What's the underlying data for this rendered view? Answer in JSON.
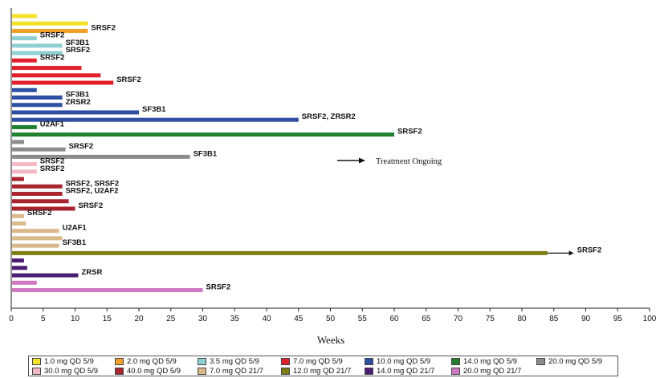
{
  "chart_data": {
    "type": "bar",
    "orientation": "horizontal",
    "xlabel": "Weeks",
    "xlim": [
      0,
      100
    ],
    "xticks": [
      0,
      5,
      10,
      15,
      20,
      25,
      30,
      35,
      40,
      45,
      50,
      55,
      60,
      65,
      70,
      75,
      80,
      85,
      90,
      95,
      100
    ],
    "annotation": "Treatment Ongoing",
    "groups": [
      {
        "name": "1.0 mg QD 5/9",
        "color": "#f2e229"
      },
      {
        "name": "2.0 mg QD 5/9",
        "color": "#f0a02a"
      },
      {
        "name": "3.5 mg QD 5/9",
        "color": "#8ecfd3"
      },
      {
        "name": "7.0 mg QD 5/9",
        "color": "#e0202a"
      },
      {
        "name": "10.0 mg QD 5/9",
        "color": "#2d4ea1"
      },
      {
        "name": "14.0 mg QD 5/9",
        "color": "#1f7f2e"
      },
      {
        "name": "20.0 mg QD 5/9",
        "color": "#8c8c8c"
      },
      {
        "name": "30.0 mg QD 5/9",
        "color": "#f3b8c4"
      },
      {
        "name": "40.0 mg QD 5/9",
        "color": "#a8242e"
      },
      {
        "name": "7.0 mg QD 21/7",
        "color": "#d9b88a"
      },
      {
        "name": "12.0 mg QD 21/7",
        "color": "#7f7e14"
      },
      {
        "name": "14.0 mg QD 21/7",
        "color": "#4a1f73"
      },
      {
        "name": "20.0 mg QD 21/7",
        "color": "#cf7ac0"
      }
    ],
    "bars": [
      {
        "group": 0,
        "value": 4,
        "label": ""
      },
      {
        "group": 0,
        "value": 12,
        "label": ""
      },
      {
        "group": 1,
        "value": 12,
        "label": "SRSF2"
      },
      {
        "group": 2,
        "value": 4,
        "label": "SRSF2"
      },
      {
        "group": 2,
        "value": 8,
        "label": "SF3B1"
      },
      {
        "group": 2,
        "value": 8,
        "label": "SRSF2"
      },
      {
        "group": 3,
        "value": 4,
        "label": "SRSF2"
      },
      {
        "group": 3,
        "value": 11,
        "label": ""
      },
      {
        "group": 3,
        "value": 14,
        "label": ""
      },
      {
        "group": 3,
        "value": 16,
        "label": "SRSF2"
      },
      {
        "group": 4,
        "value": 4,
        "label": ""
      },
      {
        "group": 4,
        "value": 8,
        "label": "SF3B1"
      },
      {
        "group": 4,
        "value": 8,
        "label": "ZRSR2"
      },
      {
        "group": 4,
        "value": 20,
        "label": "SF3B1"
      },
      {
        "group": 4,
        "value": 45,
        "label": "SRSF2, ZRSR2"
      },
      {
        "group": 5,
        "value": 4,
        "label": "U2AF1"
      },
      {
        "group": 5,
        "value": 60,
        "label": "SRSF2"
      },
      {
        "group": 6,
        "value": 2,
        "label": ""
      },
      {
        "group": 6,
        "value": 8.5,
        "label": "SRSF2"
      },
      {
        "group": 6,
        "value": 28,
        "label": "SF3B1"
      },
      {
        "group": 7,
        "value": 4,
        "label": "SRSF2"
      },
      {
        "group": 7,
        "value": 4,
        "label": "SRSF2"
      },
      {
        "group": 8,
        "value": 2,
        "label": ""
      },
      {
        "group": 8,
        "value": 8,
        "label": "SRSF2, SRSF2"
      },
      {
        "group": 8,
        "value": 8,
        "label": "SRSF2, U2AF2"
      },
      {
        "group": 8,
        "value": 9,
        "label": ""
      },
      {
        "group": 8,
        "value": 10,
        "label": "SRSF2"
      },
      {
        "group": 9,
        "value": 2,
        "label": "SRSF2"
      },
      {
        "group": 9,
        "value": 2.3,
        "label": ""
      },
      {
        "group": 9,
        "value": 7.5,
        "label": "U2AF1"
      },
      {
        "group": 9,
        "value": 8,
        "label": ""
      },
      {
        "group": 9,
        "value": 7.5,
        "label": "SF3B1"
      },
      {
        "group": 10,
        "value": 84,
        "label": "SRSF2",
        "ongoing": true
      },
      {
        "group": 11,
        "value": 2,
        "label": ""
      },
      {
        "group": 11,
        "value": 2.5,
        "label": ""
      },
      {
        "group": 11,
        "value": 10.5,
        "label": "ZRSR"
      },
      {
        "group": 12,
        "value": 4,
        "label": ""
      },
      {
        "group": 12,
        "value": 30,
        "label": "SRSF2"
      }
    ]
  }
}
